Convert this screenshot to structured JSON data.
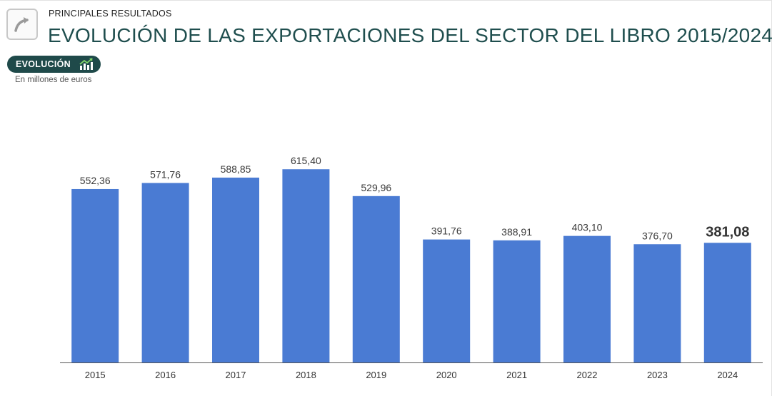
{
  "header": {
    "section_label": "PRINCIPALES RESULTADOS",
    "title": "EVOLUCIÓN DE LAS EXPORTACIONES DEL SECTOR DEL LIBRO 2015/2024"
  },
  "tab": {
    "label": "EVOLUCIÓN",
    "icon": "trend-chart-icon"
  },
  "unit_label": "En millones de euros",
  "colors": {
    "bar": "#4a7bd3",
    "title": "#1f4e4e",
    "pill": "#1f4a4a"
  },
  "chart_data": {
    "type": "bar",
    "categories": [
      "2015",
      "2016",
      "2017",
      "2018",
      "2019",
      "2020",
      "2021",
      "2022",
      "2023",
      "2024"
    ],
    "values": [
      552.36,
      571.76,
      588.85,
      615.4,
      529.96,
      391.76,
      388.91,
      403.1,
      376.7,
      381.08
    ],
    "data_labels": [
      "552,36",
      "571,76",
      "588,85",
      "615,40",
      "529,96",
      "391,76",
      "388,91",
      "403,10",
      "376,70",
      "381,08"
    ],
    "highlighted_label_index": 9,
    "ylim": [
      0,
      700
    ],
    "grid": false,
    "title": "",
    "xlabel": "",
    "ylabel": ""
  }
}
